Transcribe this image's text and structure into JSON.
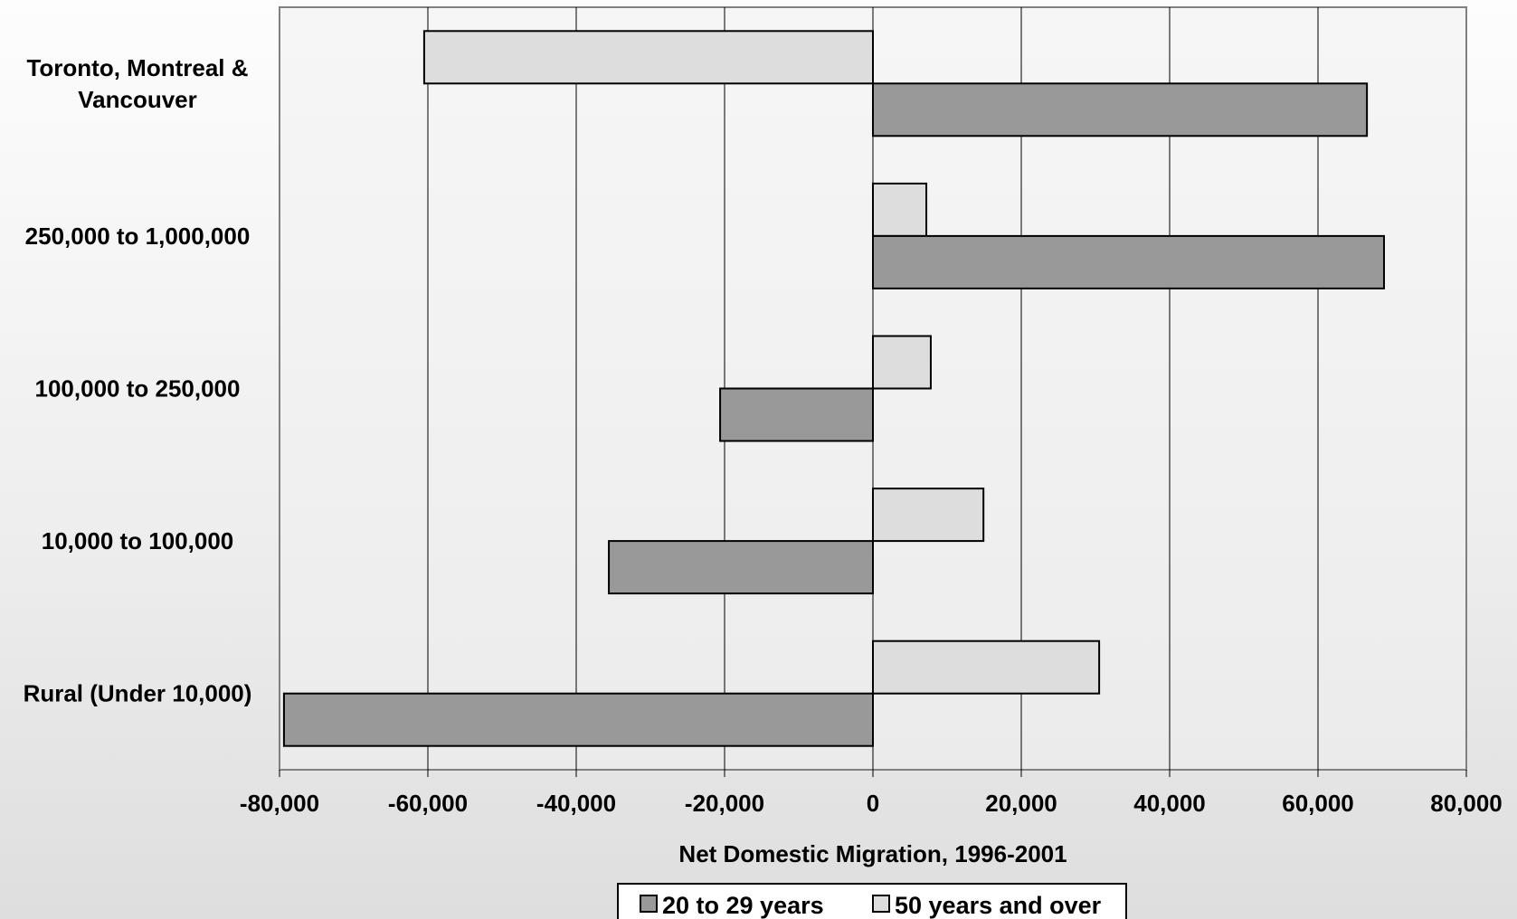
{
  "chart_data": {
    "type": "bar",
    "orientation": "horizontal",
    "categories": [
      "Toronto, Montreal & Vancouver",
      "250,000 to 1,000,000",
      "100,000 to 250,000",
      "10,000 to 100,000",
      "Rural (Under 10,000)"
    ],
    "category_label_lines": [
      [
        "Toronto, Montreal &",
        "Vancouver"
      ],
      [
        "250,000 to 1,000,000"
      ],
      [
        "100,000 to 250,000"
      ],
      [
        "10,000 to 100,000"
      ],
      [
        "Rural (Under 10,000)"
      ]
    ],
    "series": [
      {
        "name": "20 to 29 years",
        "color": "#999999",
        "values": [
          66600,
          68900,
          -20600,
          -35600,
          -79400
        ]
      },
      {
        "name": "50 years and over",
        "color": "#dddddd",
        "values": [
          -60500,
          7200,
          7800,
          14900,
          30500
        ]
      }
    ],
    "title": "",
    "xlabel": "Net Domestic Migration, 1996-2001",
    "ylabel": "",
    "xlim": [
      -80000,
      80000
    ],
    "xticks": [
      -80000,
      -60000,
      -40000,
      -20000,
      0,
      20000,
      40000,
      60000,
      80000
    ],
    "xtick_labels": [
      "-80,000",
      "-60,000",
      "-40,000",
      "-20,000",
      "0",
      "20,000",
      "40,000",
      "60,000",
      "80,000"
    ],
    "grid": "vertical",
    "legend_position": "bottom"
  }
}
